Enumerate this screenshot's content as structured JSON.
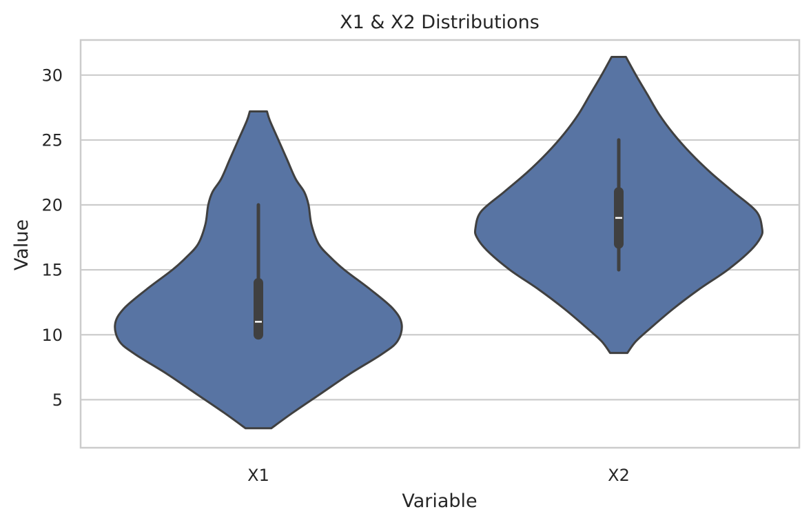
{
  "chart_data": {
    "type": "violin",
    "title": "X1 & X2 Distributions",
    "xlabel": "Variable",
    "ylabel": "Value",
    "categories": [
      "X1",
      "X2"
    ],
    "ylim": [
      1.3,
      32.7
    ],
    "yticks": [
      5,
      10,
      15,
      20,
      25,
      30
    ],
    "grid": true,
    "legend": "none",
    "colors": {
      "violin_fill": "#5874a3",
      "violin_edge": "#404040",
      "grid": "#cccccc",
      "spine": "#cccccc",
      "text": "#262626",
      "median": "#ffffff"
    },
    "series": [
      {
        "category": "X1",
        "min": 10,
        "q1": 10,
        "median": 11,
        "q3": 14,
        "max": 20,
        "kde_extent": [
          2.8,
          27.2
        ],
        "density_profile": [
          [
            2.8,
            0.09
          ],
          [
            4,
            0.24
          ],
          [
            5.5,
            0.44
          ],
          [
            7,
            0.64
          ],
          [
            8.5,
            0.86
          ],
          [
            9.5,
            0.97
          ],
          [
            10.8,
            1.0
          ],
          [
            12,
            0.94
          ],
          [
            13.5,
            0.78
          ],
          [
            15,
            0.6
          ],
          [
            16,
            0.5
          ],
          [
            17,
            0.42
          ],
          [
            18.5,
            0.37
          ],
          [
            20,
            0.35
          ],
          [
            21,
            0.32
          ],
          [
            22,
            0.26
          ],
          [
            23.5,
            0.2
          ],
          [
            25,
            0.14
          ],
          [
            26.5,
            0.08
          ],
          [
            27.2,
            0.06
          ]
        ]
      },
      {
        "category": "X2",
        "min": 15,
        "q1": 17,
        "median": 19,
        "q3": 21,
        "max": 25,
        "kde_extent": [
          8.6,
          31.4
        ],
        "density_profile": [
          [
            8.6,
            0.06
          ],
          [
            9.5,
            0.12
          ],
          [
            10.5,
            0.22
          ],
          [
            12,
            0.38
          ],
          [
            13.5,
            0.56
          ],
          [
            15,
            0.76
          ],
          [
            16.5,
            0.92
          ],
          [
            17.5,
            0.99
          ],
          [
            18.2,
            1.0
          ],
          [
            19.5,
            0.96
          ],
          [
            21,
            0.8
          ],
          [
            22.5,
            0.64
          ],
          [
            24,
            0.5
          ],
          [
            25.5,
            0.38
          ],
          [
            27,
            0.28
          ],
          [
            28.5,
            0.2
          ],
          [
            30,
            0.12
          ],
          [
            31.4,
            0.05
          ]
        ]
      }
    ]
  }
}
